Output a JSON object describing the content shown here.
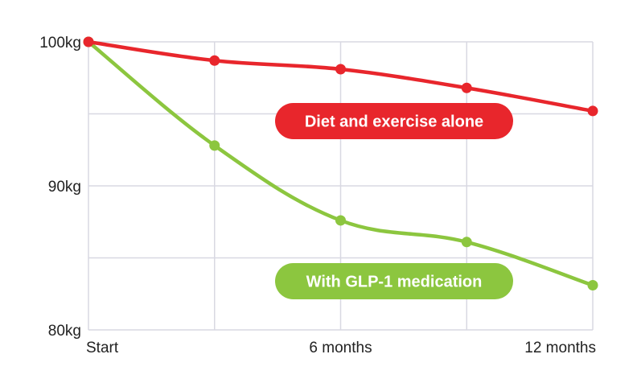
{
  "chart_data": {
    "type": "line",
    "title": "",
    "xlabel": "",
    "ylabel": "",
    "x": [
      0,
      3,
      6,
      9,
      12
    ],
    "x_tick_labels": [
      "Start",
      "",
      "6 months",
      "",
      "12 months"
    ],
    "ylim": [
      80,
      100
    ],
    "y_ticks": [
      80,
      85,
      90,
      95,
      100
    ],
    "y_tick_labels": [
      "80kg",
      "",
      "90kg",
      "",
      "100kg"
    ],
    "grid": true,
    "series": [
      {
        "name": "Diet and exercise alone",
        "color": "#e8262c",
        "values": [
          100,
          98.7,
          98.1,
          96.8,
          95.2
        ]
      },
      {
        "name": "With GLP-1 medication",
        "color": "#8cc63f",
        "values": [
          100,
          92.8,
          87.6,
          86.1,
          83.1
        ]
      }
    ]
  }
}
